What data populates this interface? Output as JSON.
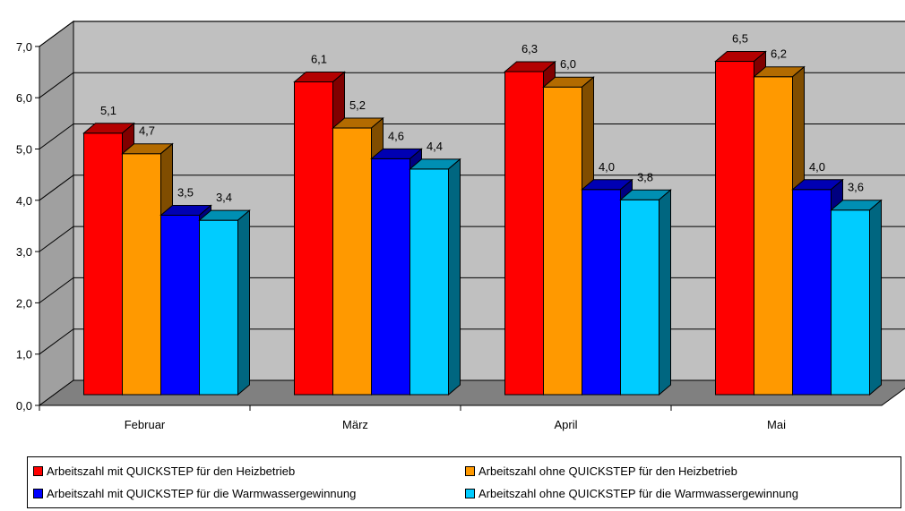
{
  "chart_data": {
    "type": "bar",
    "categories": [
      "Februar",
      "März",
      "April",
      "Mai"
    ],
    "series": [
      {
        "name": "Arbeitszahl mit QUICKSTEP für den Heizbetrieb",
        "values": [
          5.1,
          6.1,
          6.3,
          6.5
        ],
        "labels": [
          "5,1",
          "6,1",
          "6,3",
          "6,5"
        ],
        "color": "#ff0000"
      },
      {
        "name": "Arbeitszahl ohne QUICKSTEP für den Heizbetrieb",
        "values": [
          4.7,
          5.2,
          6.0,
          6.2
        ],
        "labels": [
          "4,7",
          "5,2",
          "6,0",
          "6,2"
        ],
        "color": "#ff9900"
      },
      {
        "name": "Arbeitszahl mit QUICKSTEP für die Warmwassergewinnung",
        "values": [
          3.5,
          4.6,
          4.0,
          4.0
        ],
        "labels": [
          "3,5",
          "4,6",
          "4,0",
          "4,0"
        ],
        "color": "#0000ff"
      },
      {
        "name": "Arbeitszahl ohne QUICKSTEP für die Warmwassergewinnung",
        "values": [
          3.4,
          4.4,
          3.8,
          3.6
        ],
        "labels": [
          "3,4",
          "4,4",
          "3,8",
          "3,6"
        ],
        "color": "#00ccff"
      }
    ],
    "ylim": [
      0,
      7
    ],
    "yticks": [
      "0,0",
      "1,0",
      "2,0",
      "3,0",
      "4,0",
      "5,0",
      "6,0",
      "7,0"
    ],
    "grid": true,
    "legend_position": "bottom",
    "wall_color": "#c0c0c0",
    "floor_color": "#808080"
  }
}
